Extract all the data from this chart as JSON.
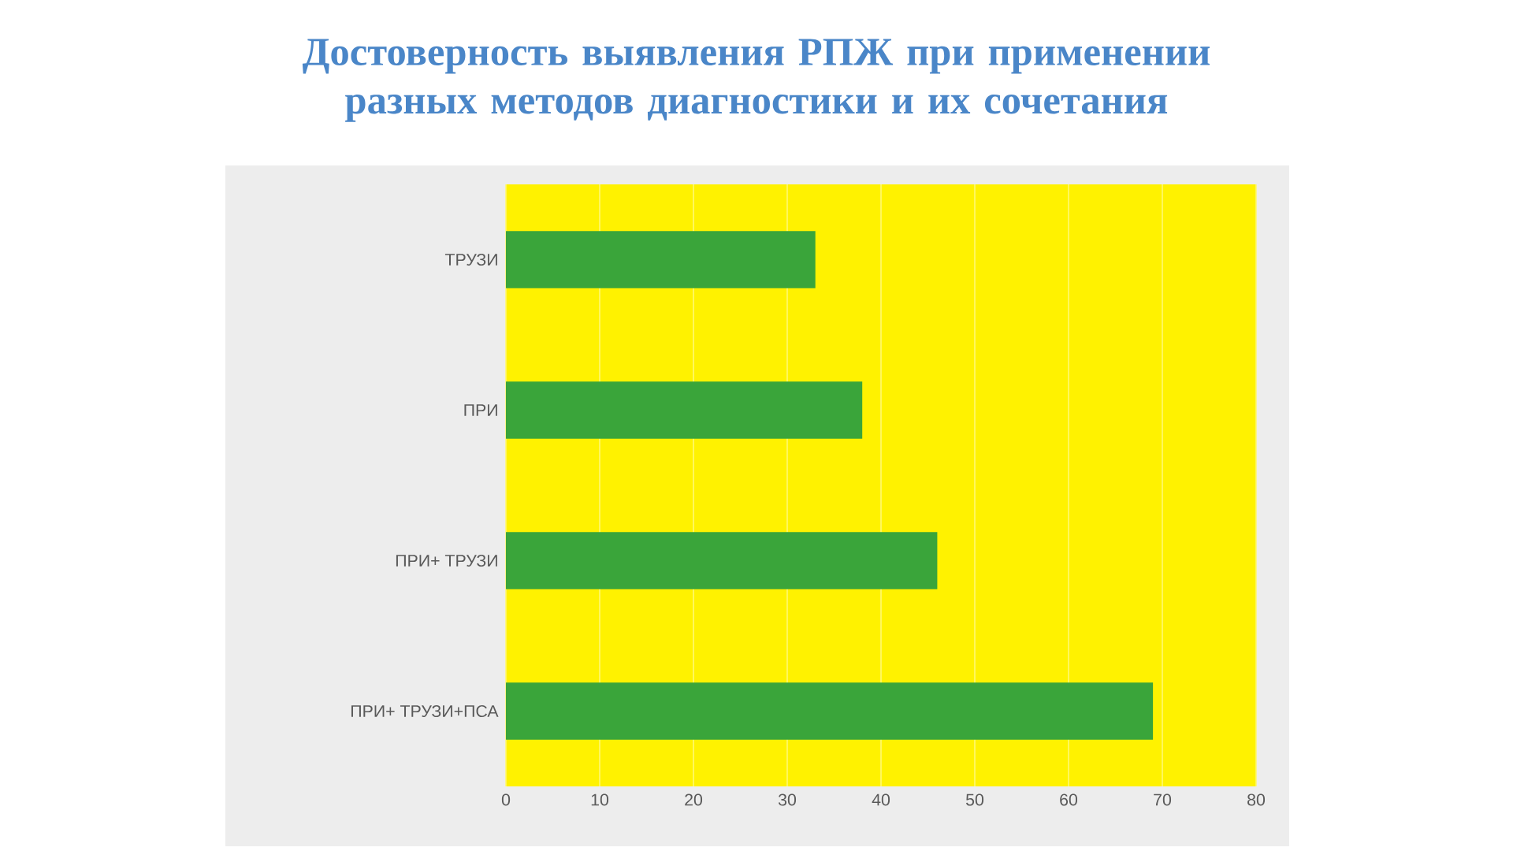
{
  "chart_data": {
    "type": "bar",
    "orientation": "horizontal",
    "title": "Достоверность выявления РПЖ при применении разных методов диагностики и их сочетания",
    "categories": [
      "ТРУЗИ",
      "ПРИ",
      "ПРИ+ ТРУЗИ",
      "ПРИ+ ТРУЗИ+ПСА"
    ],
    "values": [
      33,
      38,
      46,
      69
    ],
    "color": "#3aa53a",
    "xlim": [
      0,
      80
    ],
    "xticks": [
      0,
      10,
      20,
      30,
      40,
      50,
      60,
      70,
      80
    ],
    "grid": "x"
  }
}
